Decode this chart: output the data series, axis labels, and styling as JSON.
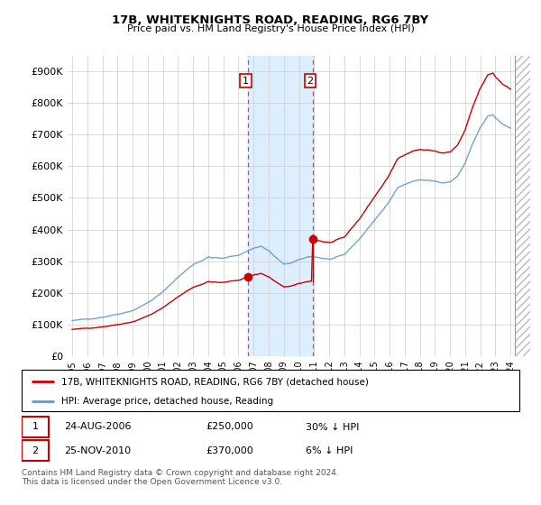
{
  "title": "17B, WHITEKNIGHTS ROAD, READING, RG6 7BY",
  "subtitle": "Price paid vs. HM Land Registry's House Price Index (HPI)",
  "footnote": "Contains HM Land Registry data © Crown copyright and database right 2024.\nThis data is licensed under the Open Government Licence v3.0.",
  "legend_label_red": "17B, WHITEKNIGHTS ROAD, READING, RG6 7BY (detached house)",
  "legend_label_blue": "HPI: Average price, detached house, Reading",
  "annotation1_date": "24-AUG-2006",
  "annotation1_price": "£250,000",
  "annotation1_hpi": "30% ↓ HPI",
  "annotation2_date": "25-NOV-2010",
  "annotation2_price": "£370,000",
  "annotation2_hpi": "6% ↓ HPI",
  "sale1_year": 2006.64,
  "sale1_price": 250000,
  "sale2_year": 2010.9,
  "sale2_price": 370000,
  "red_color": "#cc0000",
  "blue_color": "#6699cc",
  "highlight_color": "#ddeeff",
  "hatch_color": "#bbbbbb",
  "ylim_max": 950000,
  "xlim_min": 1994.7,
  "xlim_max": 2025.3,
  "yticks": [
    0,
    100000,
    200000,
    300000,
    400000,
    500000,
    600000,
    700000,
    800000,
    900000
  ],
  "ytick_labels": [
    "£0",
    "£100K",
    "£200K",
    "£300K",
    "£400K",
    "£500K",
    "£600K",
    "£700K",
    "£800K",
    "£900K"
  ]
}
